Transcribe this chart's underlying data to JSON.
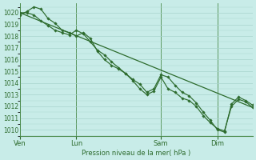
{
  "bg_color": "#c8ece8",
  "grid_color": "#a8d4cc",
  "line_color": "#2d6b2d",
  "marker_color": "#2d6b2d",
  "xlabel_text": "Pression niveau de la mer( hPa )",
  "ylim": [
    1009.5,
    1020.8
  ],
  "yticks": [
    1010,
    1011,
    1012,
    1013,
    1014,
    1015,
    1016,
    1017,
    1018,
    1019,
    1020
  ],
  "xtick_labels": [
    "Ven",
    "Lun",
    "Sam",
    "Dim"
  ],
  "xtick_positions": [
    0,
    16,
    40,
    56
  ],
  "vlines": [
    0,
    16,
    40,
    56
  ],
  "xlim": [
    0,
    66
  ],
  "series1_x": [
    0,
    2,
    4,
    6,
    8,
    10,
    12,
    14,
    16,
    18,
    20,
    22,
    24,
    26,
    28,
    30,
    32,
    34,
    36,
    38,
    40,
    42,
    44,
    46,
    48,
    50,
    52,
    54,
    56,
    58,
    60,
    62,
    64,
    66
  ],
  "series1_y": [
    1019.8,
    1020.1,
    1020.5,
    1020.3,
    1019.5,
    1019.1,
    1018.5,
    1018.3,
    1018.0,
    1018.3,
    1017.8,
    1016.7,
    1016.0,
    1015.5,
    1015.2,
    1014.8,
    1014.3,
    1013.9,
    1013.2,
    1013.5,
    1014.7,
    1014.5,
    1013.8,
    1013.2,
    1012.9,
    1012.3,
    1011.5,
    1010.8,
    1010.0,
    1009.8,
    1012.2,
    1012.8,
    1012.5,
    1012.1
  ],
  "series2_x": [
    0,
    2,
    4,
    6,
    8,
    10,
    12,
    14,
    16,
    18,
    20,
    22,
    24,
    26,
    28,
    30,
    32,
    34,
    36,
    38,
    40,
    42,
    44,
    46,
    48,
    50,
    52,
    54,
    56,
    58,
    60,
    62,
    64,
    66
  ],
  "series2_y": [
    1020.0,
    1020.0,
    1019.8,
    1019.3,
    1018.9,
    1018.5,
    1018.3,
    1018.1,
    1018.5,
    1018.2,
    1017.5,
    1016.8,
    1016.4,
    1015.8,
    1015.3,
    1014.8,
    1014.2,
    1013.5,
    1013.0,
    1013.3,
    1014.5,
    1013.5,
    1013.2,
    1012.7,
    1012.5,
    1012.0,
    1011.2,
    1010.6,
    1010.1,
    1009.9,
    1012.0,
    1012.6,
    1012.4,
    1011.9
  ],
  "trend_x": [
    0,
    66
  ],
  "trend_y": [
    1020.0,
    1011.9
  ]
}
